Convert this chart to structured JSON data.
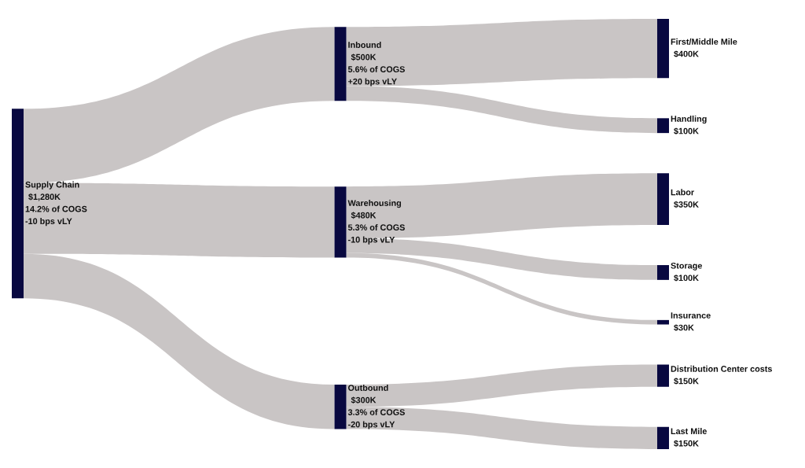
{
  "chart_data": {
    "type": "other",
    "categories": [
      "Supply Chain",
      "Inbound",
      "Warehousing",
      "Outbound",
      "First/Middle Mile",
      "Handling",
      "Labor",
      "Storage",
      "Insurance",
      "Distribution Center costs",
      "Last Mile"
    ],
    "values": [
      1280,
      500,
      480,
      300,
      400,
      100,
      350,
      100,
      30,
      150,
      150
    ],
    "value_labels": [
      "$1,280K",
      "$500K",
      "$480K",
      "$300K",
      "$400K",
      "$100K",
      "$350K",
      "$100K",
      "$30K",
      "$150K",
      "$150K"
    ],
    "annotations": [
      {
        "text": "14.2% of COGS\n-10 bps vLY",
        "x": "Supply Chain"
      },
      {
        "text": "5.6% of COGS\n+20 bps vLY",
        "x": "Inbound"
      },
      {
        "text": "5.3% of COGS\n-10 bps vLY",
        "x": "Warehousing"
      },
      {
        "text": "3.3% of COGS\n-20 bps vLY",
        "x": "Outbound"
      }
    ]
  }
}
